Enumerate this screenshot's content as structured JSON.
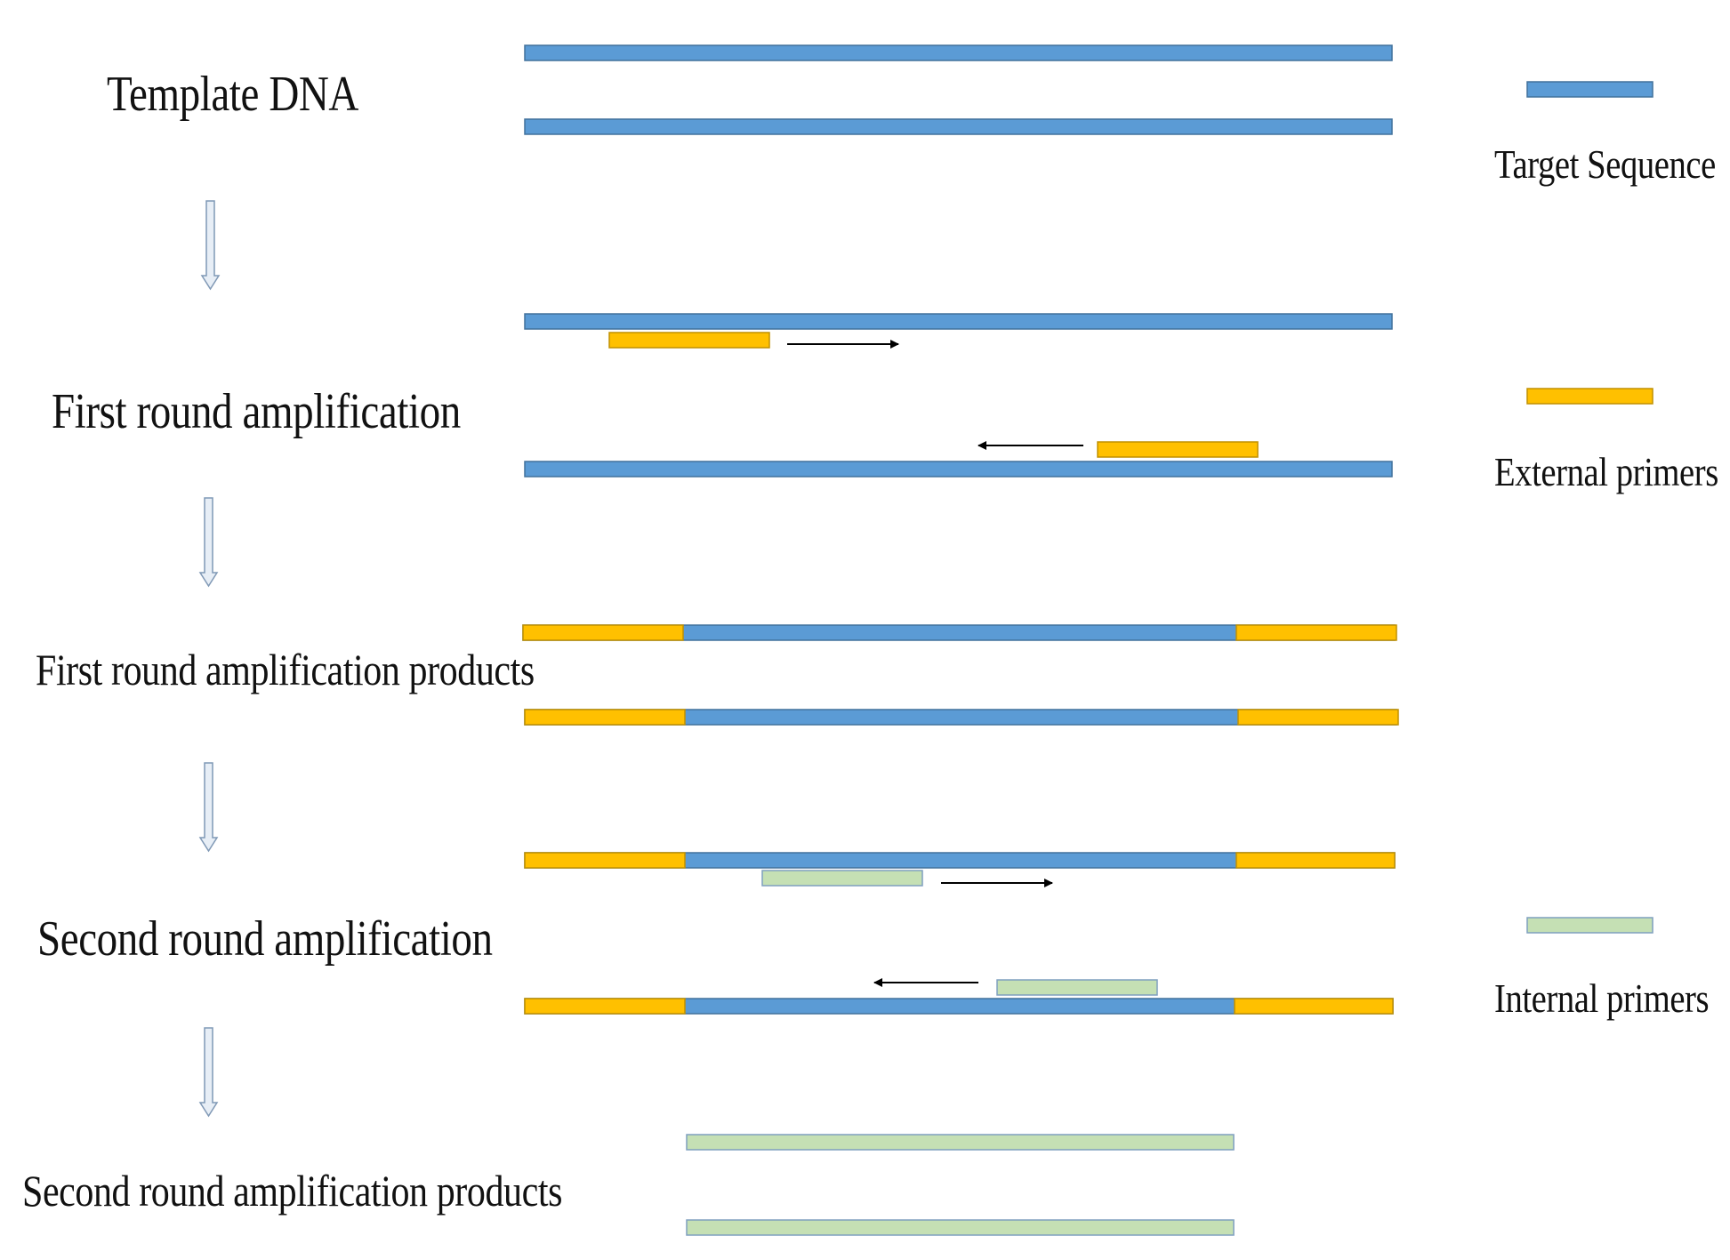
{
  "stages": [
    {
      "label": "Template DNA"
    },
    {
      "label": "First round amplification"
    },
    {
      "label": "First round amplification products"
    },
    {
      "label": "Second round amplification"
    },
    {
      "label": "Second round amplification products"
    }
  ],
  "legend": [
    {
      "label": "Target Sequence",
      "color": "#5b9bd5",
      "icon": "target-sequence-swatch"
    },
    {
      "label": "External primers",
      "color": "#ffc000",
      "icon": "external-primer-swatch"
    },
    {
      "label": "Internal primers",
      "color": "#c5e0b4",
      "icon": "internal-primer-swatch"
    }
  ],
  "colors": {
    "target": "#5b9bd5",
    "target_border": "#41719c",
    "external": "#ffc000",
    "external_border": "#c09000",
    "internal": "#c5e0b4",
    "internal_border": "#7f9fbf",
    "flow_arrow": "#e7eef6",
    "flow_arrow_border": "#7f98b5"
  }
}
